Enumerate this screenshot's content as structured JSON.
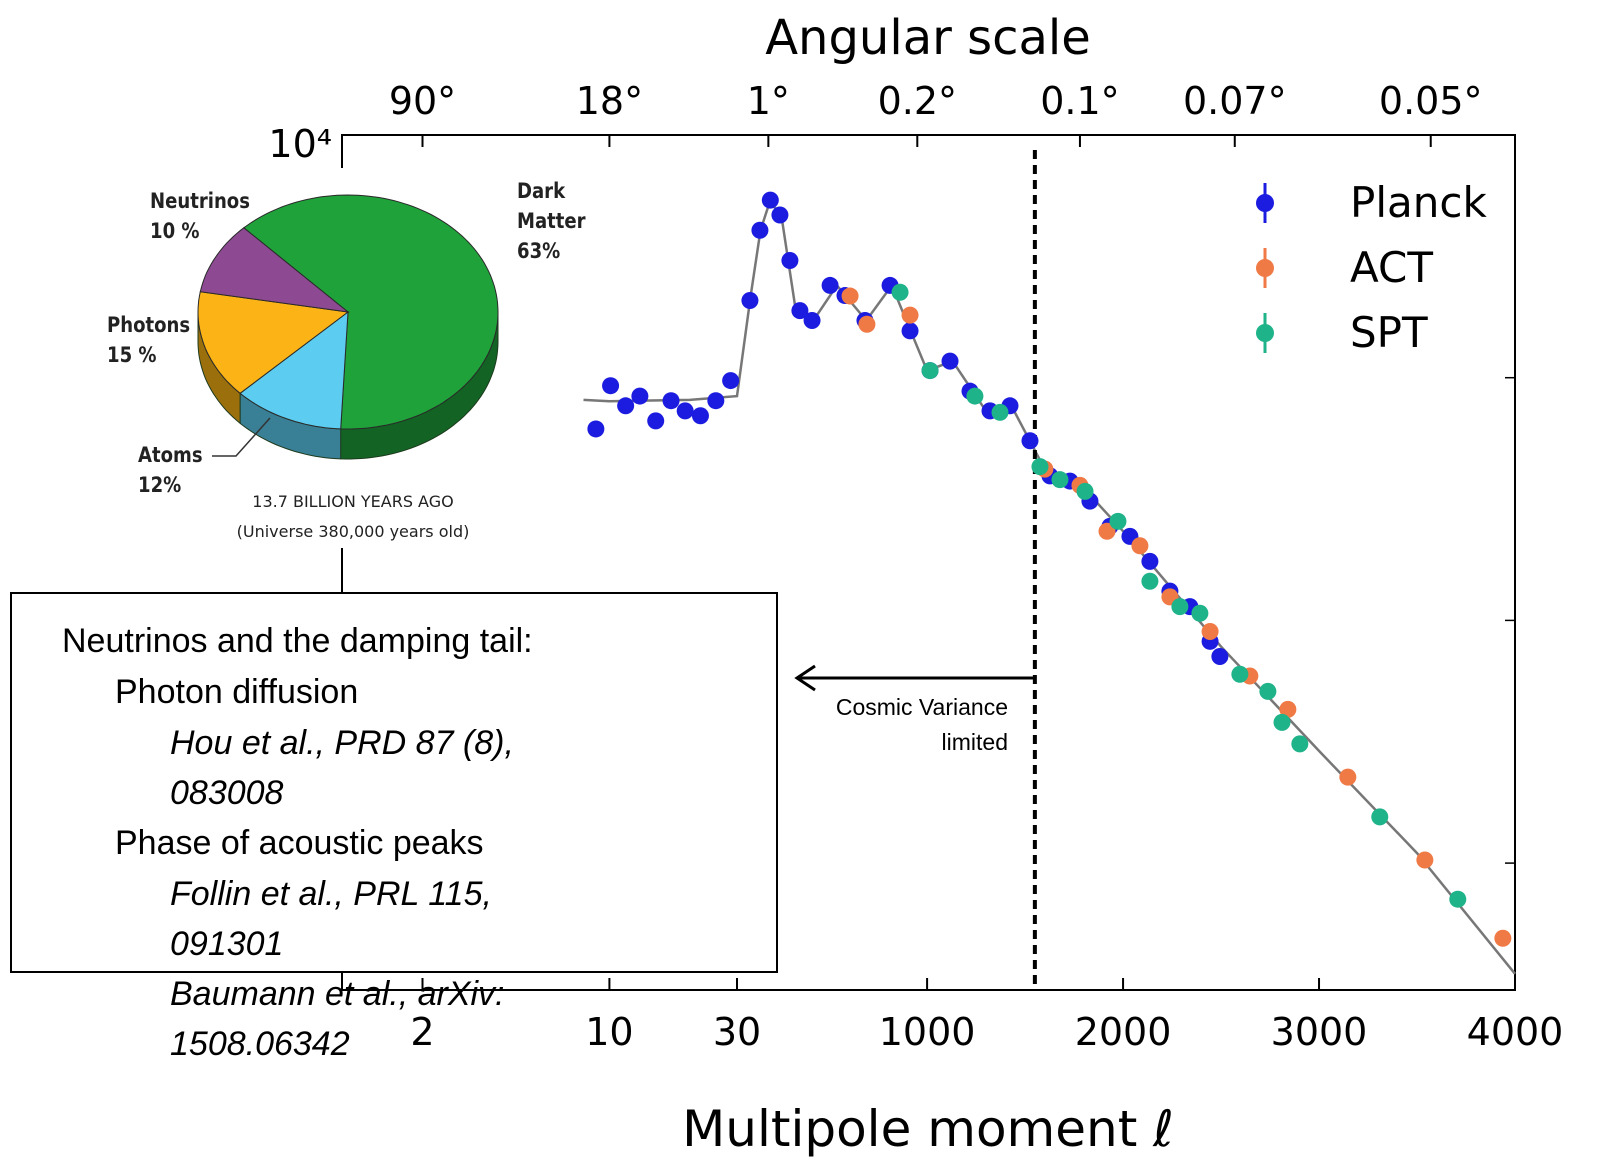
{
  "chart_data": [
    {
      "type": "scatter",
      "title": "Angular scale",
      "xlabel": "Multipole moment ℓ",
      "xscale": "log-linear",
      "xbreak": 30,
      "xlim": [
        1,
        4000
      ],
      "xticks": [
        2,
        10,
        30,
        1000,
        2000,
        3000,
        4000
      ],
      "x2ticks": [
        {
          "value": 2,
          "label": "90°"
        },
        {
          "value": 10,
          "label": "18°"
        },
        {
          "value": 190,
          "label": "1°"
        },
        {
          "value": 950,
          "label": "0.2°"
        },
        {
          "value": 1780,
          "label": "0.1°"
        },
        {
          "value": 2570,
          "label": "0.07°"
        },
        {
          "value": 3570,
          "label": "0.05°"
        }
      ],
      "yscale": "log",
      "ylim": [
        3,
        10000
      ],
      "yticks": [
        {
          "value": 10000,
          "label": "10⁴"
        }
      ],
      "yminorticks": [
        1000,
        100,
        10
      ],
      "legend": "upper right",
      "series": [
        {
          "name": "Planck",
          "color": "#1c1ce0",
          "x": [
            8.9,
            10.1,
            11.5,
            13,
            14.9,
            17,
            19.2,
            21.9,
            25,
            28.4,
            96,
            147,
            200,
            249,
            300,
            351,
            413,
            505,
            581,
            683,
            811,
            913,
            1015,
            1117,
            1219,
            1321,
            1423,
            1525,
            1627,
            1729,
            1831,
            1933,
            2035,
            2137,
            2239,
            2341,
            2444,
            2494
          ],
          "values": [
            615,
            927,
            766,
            840,
            664,
            804,
            730,
            697,
            804,
            973,
            2080,
            4050,
            5390,
            4680,
            3040,
            1890,
            1720,
            2400,
            2180,
            1720,
            2400,
            1560,
            1070,
            1170,
            880,
            730,
            766,
            550,
            394,
            375,
            310,
            244,
            222,
            175,
            132,
            114,
            82,
            71
          ]
        },
        {
          "name": "ACT",
          "color": "#f07a45",
          "x": [
            607,
            693,
            913,
            1601,
            1780,
            1918,
            2086,
            2239,
            2444,
            2647,
            2841,
            3147,
            3540,
            3938
          ],
          "values": [
            2170,
            1660,
            1810,
            420,
            360,
            233,
            203,
            125,
            90,
            59,
            43,
            22.6,
            10.3,
            4.9
          ]
        },
        {
          "name": "SPT",
          "color": "#1fb38a",
          "x": [
            862,
            1015,
            1244,
            1372,
            1576,
            1678,
            1806,
            1974,
            2137,
            2290,
            2392,
            2596,
            2739,
            2811,
            2902,
            3310,
            3708
          ],
          "values": [
            2250,
            1070,
            840,
            720,
            430,
            380,
            340,
            256,
            145,
            114,
            107,
            60,
            51,
            38,
            31,
            15.5,
            7.1
          ]
        }
      ],
      "model": {
        "color": "#777777",
        "x": [
          8,
          10,
          20,
          30,
          100,
          150,
          200,
          260,
          330,
          420,
          540,
          690,
          820,
          1000,
          1130,
          1300,
          1430,
          1600,
          1800,
          2000,
          2500,
          3000,
          3500,
          4000
        ],
        "values": [
          810,
          800,
          810,
          840,
          2180,
          4050,
          5390,
          4450,
          1890,
          1720,
          2400,
          1720,
          2400,
          1070,
          1170,
          730,
          766,
          420,
          350,
          233,
          78,
          29,
          11,
          3.5
        ]
      },
      "vline": 1550,
      "annotation": [
        "Cosmic Variance",
        "limited"
      ]
    },
    {
      "type": "pie",
      "categories": [
        "Dark Matter",
        "Atoms",
        "Photons",
        "Neutrinos"
      ],
      "values": [
        63,
        12,
        15,
        10
      ],
      "value_labels": [
        "63%",
        "12%",
        "15 %",
        "10 %"
      ],
      "colors": [
        "#1fa23a",
        "#5ccdf0",
        "#fcb315",
        "#8d4a92"
      ],
      "annotations": [
        "13.7 BILLION YEARS AGO",
        "(Universe 380,000 years old)"
      ]
    }
  ],
  "text_box": {
    "heading": "Neutrinos and the damping tail:",
    "items": [
      {
        "title": "Photon diffusion",
        "refs": [
          "Hou et al., PRD 87 (8), 083008"
        ]
      },
      {
        "title": "Phase of acoustic peaks",
        "refs": [
          "Follin et al., PRL 115, 091301",
          "Baumann et al., arXiv: 1508.06342"
        ]
      }
    ]
  }
}
